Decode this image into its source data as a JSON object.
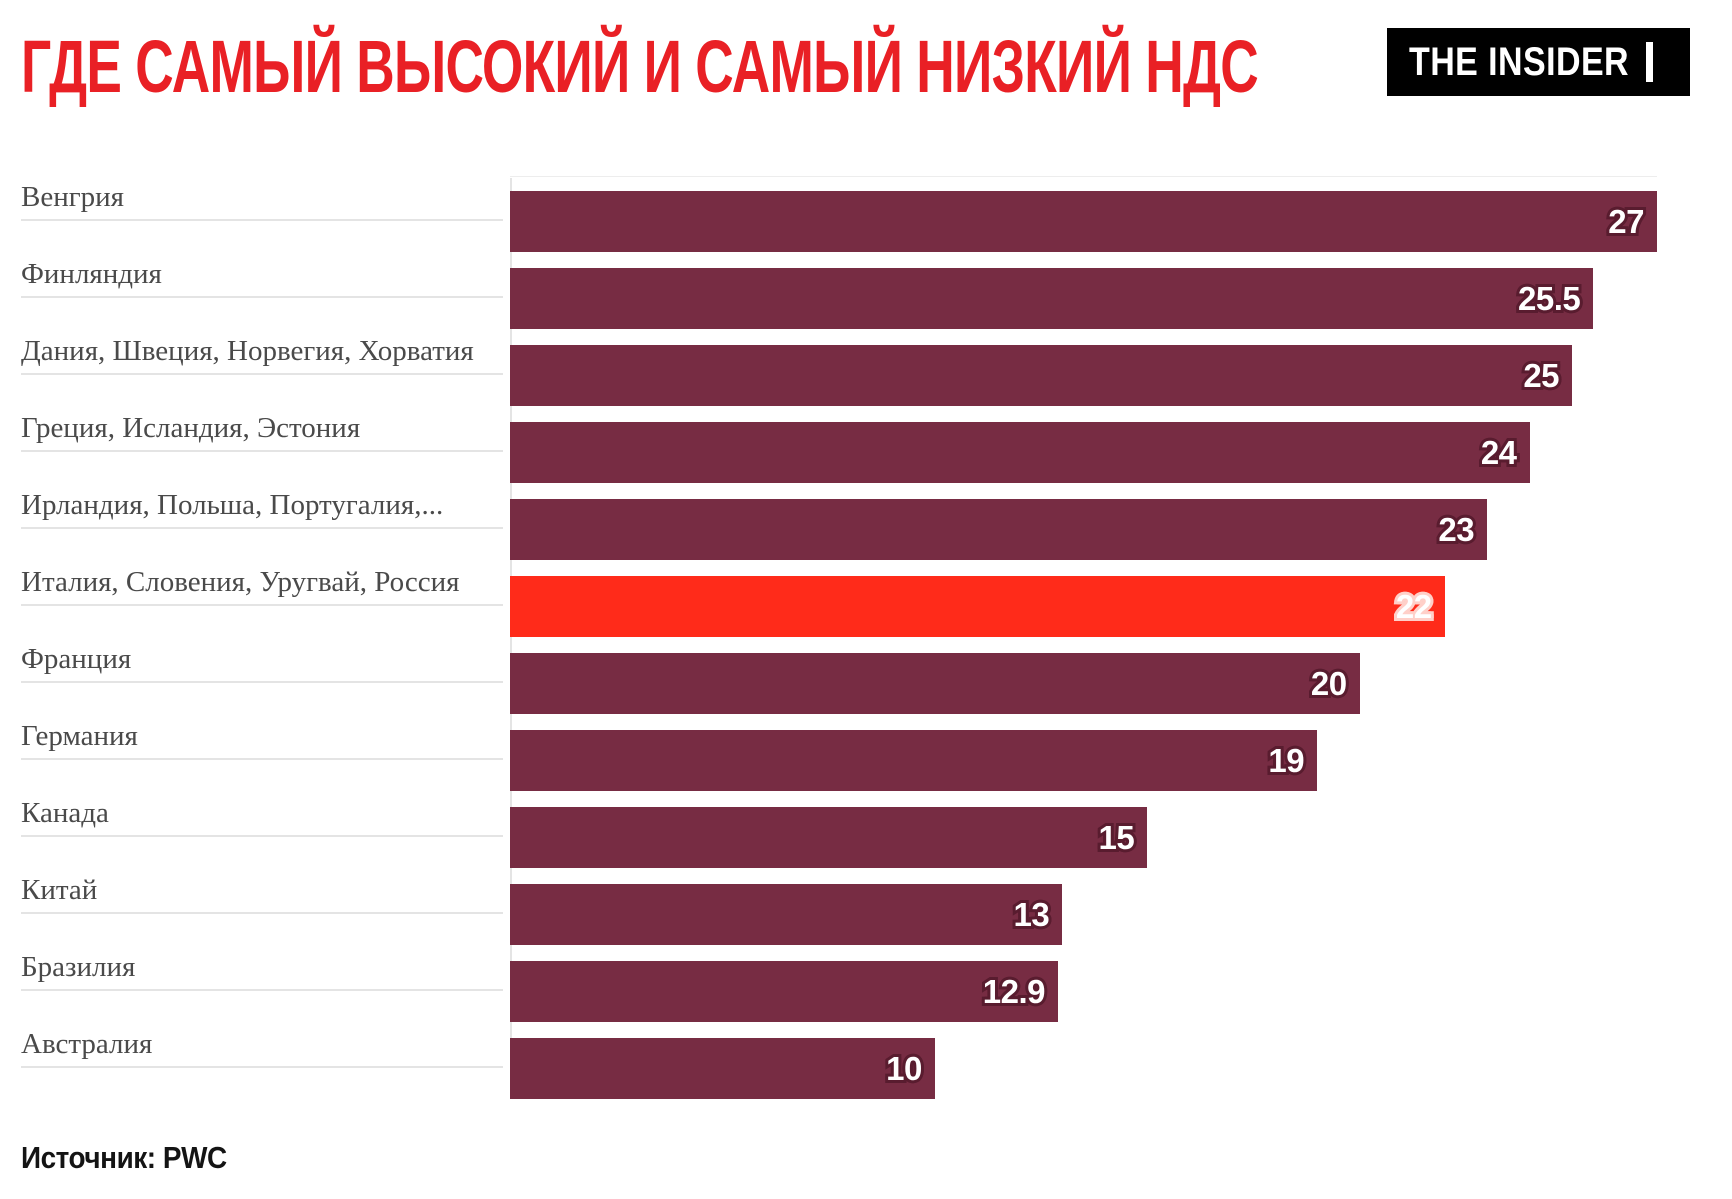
{
  "header": {
    "title": "ГДЕ САМЫЙ ВЫСОКИЙ И САМЫЙ НИЗКИЙ НДС",
    "logo_text": "THE INSIDER"
  },
  "footer": {
    "source": "Источник: PWC"
  },
  "colors": {
    "title": "#e92025",
    "bar": "#772c43",
    "bar_highlight": "#ff2b1a",
    "value_outline": "#591c2f",
    "value_outline_highlight": "#ffd0c9",
    "label_text": "#4a4a4a",
    "grid": "#e4e4e4"
  },
  "chart_data": {
    "type": "bar",
    "orientation": "horizontal",
    "title": "ГДЕ САМЫЙ ВЫСОКИЙ И САМЫЙ НИЗКИЙ НДС",
    "source": "Источник: PWC",
    "xlim": [
      0,
      27
    ],
    "legend": "none",
    "grid": "category underlines and single vertical baseline only",
    "highlight_index": 5,
    "categories": [
      "Венгрия",
      "Финляндия",
      "Дания, Швеция, Норвегия, Хорватия",
      "Греция, Исландия, Эстония",
      "Ирландия, Польша, Португалия,...",
      "Италия, Словения, Уругвай, Россия",
      "Франция",
      "Германия",
      "Канада",
      "Китай",
      "Бразилия",
      "Австралия"
    ],
    "values": [
      27,
      25.5,
      25,
      24,
      23,
      22,
      20,
      19,
      15,
      13,
      12.9,
      10
    ],
    "value_labels": [
      "27",
      "25.5",
      "25",
      "24",
      "23",
      "22",
      "20",
      "19",
      "15",
      "13",
      "12.9",
      "10"
    ]
  }
}
